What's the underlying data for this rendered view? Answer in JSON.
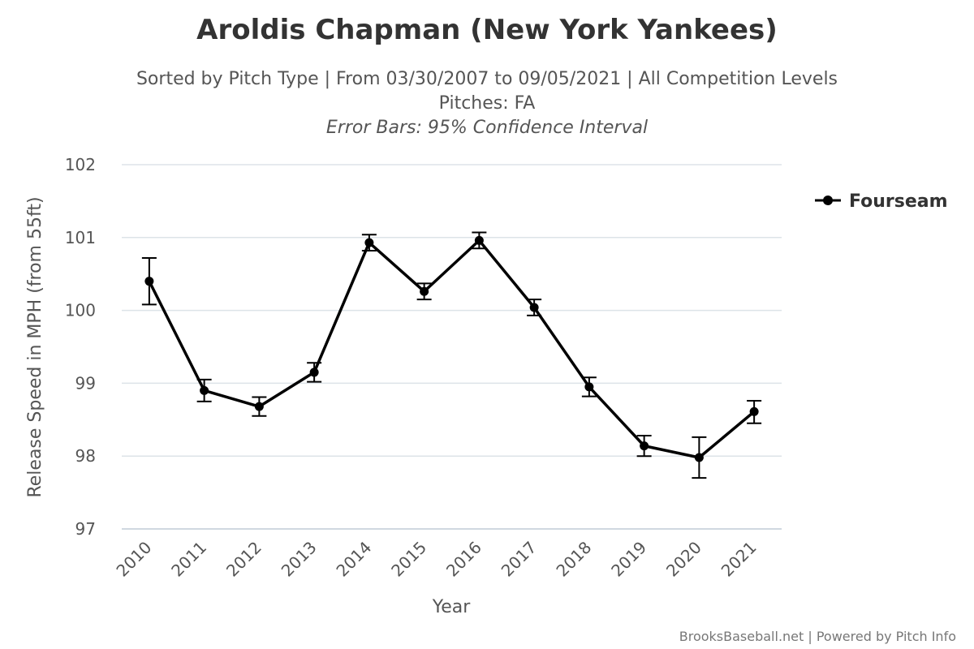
{
  "chart_data": {
    "type": "line",
    "title": "Aroldis Chapman (New York Yankees)",
    "subtitle_line1": "Sorted by Pitch Type | From 03/30/2007 to 09/05/2021 | All Competition Levels",
    "subtitle_line2": "Pitches: FA",
    "subtitle_line3": "Error Bars: 95% Confidence Interval",
    "xlabel": "Year",
    "ylabel": "Release Speed in MPH (from 55ft)",
    "categories": [
      "2010",
      "2011",
      "2012",
      "2013",
      "2014",
      "2015",
      "2016",
      "2017",
      "2018",
      "2019",
      "2020",
      "2021"
    ],
    "ylim": [
      97,
      102
    ],
    "yticks": [
      "97",
      "98",
      "99",
      "100",
      "101",
      "102"
    ],
    "grid": true,
    "legend_position": "right",
    "series": [
      {
        "name": "Fourseam",
        "color": "#000000",
        "values": [
          100.4,
          98.9,
          98.68,
          99.15,
          100.93,
          100.26,
          100.96,
          100.04,
          98.95,
          98.14,
          97.98,
          98.61
        ],
        "error_low": [
          100.08,
          98.75,
          98.55,
          99.02,
          100.82,
          100.15,
          100.85,
          99.93,
          98.82,
          98.0,
          97.7,
          98.45
        ],
        "error_high": [
          100.72,
          99.05,
          98.81,
          99.28,
          101.04,
          100.37,
          101.07,
          100.15,
          99.08,
          98.28,
          98.26,
          98.76
        ]
      }
    ],
    "credits": "BrooksBaseball.net | Powered by Pitch Info"
  }
}
